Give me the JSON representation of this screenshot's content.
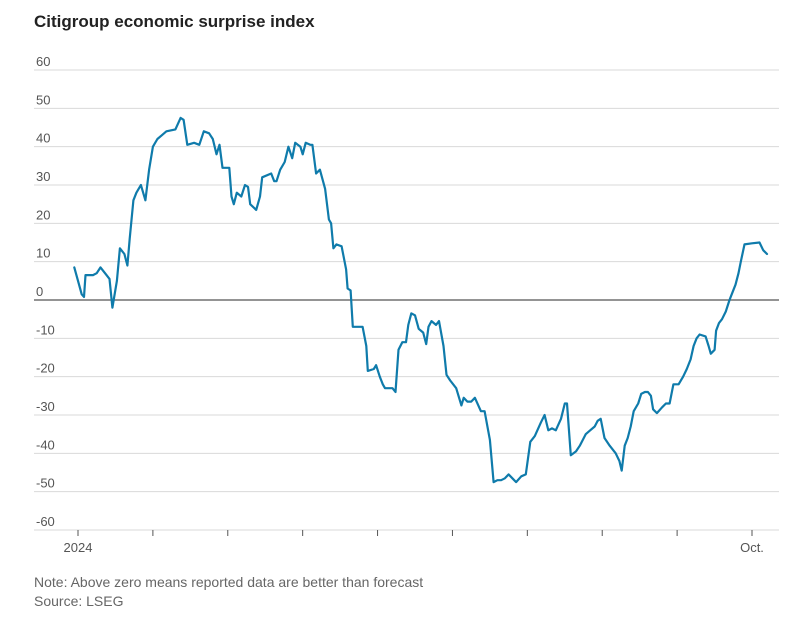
{
  "title": "Citigroup economic surprise index",
  "note": "Note: Above zero means reported data are better than forecast",
  "source": "Source: LSEG",
  "chart_data": {
    "type": "line",
    "title": "Citigroup economic surprise index",
    "xlabel": "",
    "ylabel": "",
    "ylim": [
      -60,
      60
    ],
    "yticks": [
      60,
      50,
      40,
      30,
      20,
      10,
      0,
      -10,
      -20,
      -30,
      -40,
      -50,
      -60
    ],
    "xtick_labels": [
      {
        "x": 0,
        "label": "2024"
      },
      {
        "x": 1,
        "label": ""
      },
      {
        "x": 2,
        "label": ""
      },
      {
        "x": 3,
        "label": ""
      },
      {
        "x": 4,
        "label": ""
      },
      {
        "x": 5,
        "label": ""
      },
      {
        "x": 6,
        "label": ""
      },
      {
        "x": 7,
        "label": ""
      },
      {
        "x": 8,
        "label": ""
      },
      {
        "x": 9,
        "label": "Oct."
      }
    ],
    "xlim": [
      0,
      9.25
    ],
    "x_unit": "months since Jan 2024",
    "grid": true,
    "zero_line": true,
    "series": [
      {
        "color": "#0f7bab",
        "points": [
          [
            -0.05,
            8.5
          ],
          [
            0.0,
            5
          ],
          [
            0.05,
            1.5
          ],
          [
            0.08,
            0.8
          ],
          [
            0.1,
            6.5
          ],
          [
            0.2,
            6.5
          ],
          [
            0.25,
            7
          ],
          [
            0.3,
            8.5
          ],
          [
            0.38,
            6.5
          ],
          [
            0.42,
            5.5
          ],
          [
            0.46,
            -2
          ],
          [
            0.52,
            5
          ],
          [
            0.56,
            13.5
          ],
          [
            0.62,
            12
          ],
          [
            0.66,
            9
          ],
          [
            0.69,
            16
          ],
          [
            0.74,
            26
          ],
          [
            0.78,
            28
          ],
          [
            0.84,
            30
          ],
          [
            0.9,
            26
          ],
          [
            0.95,
            34
          ],
          [
            1.0,
            40
          ],
          [
            1.06,
            42
          ],
          [
            1.12,
            43
          ],
          [
            1.18,
            44
          ],
          [
            1.3,
            44.5
          ],
          [
            1.37,
            47.5
          ],
          [
            1.41,
            47
          ],
          [
            1.46,
            40.5
          ],
          [
            1.55,
            41
          ],
          [
            1.62,
            40.5
          ],
          [
            1.68,
            44
          ],
          [
            1.75,
            43.5
          ],
          [
            1.8,
            42
          ],
          [
            1.85,
            38
          ],
          [
            1.89,
            40.5
          ],
          [
            1.93,
            34.5
          ],
          [
            2.02,
            34.5
          ],
          [
            2.05,
            27
          ],
          [
            2.08,
            25
          ],
          [
            2.12,
            28
          ],
          [
            2.18,
            27
          ],
          [
            2.23,
            30
          ],
          [
            2.27,
            29.5
          ],
          [
            2.3,
            25
          ],
          [
            2.38,
            23.5
          ],
          [
            2.43,
            27
          ],
          [
            2.46,
            32
          ],
          [
            2.58,
            33
          ],
          [
            2.62,
            31
          ],
          [
            2.65,
            31
          ],
          [
            2.7,
            34
          ],
          [
            2.76,
            36
          ],
          [
            2.81,
            40
          ],
          [
            2.86,
            37
          ],
          [
            2.9,
            41
          ],
          [
            2.97,
            40
          ],
          [
            3.0,
            38
          ],
          [
            3.04,
            41
          ],
          [
            3.1,
            40.5
          ],
          [
            3.13,
            40.5
          ],
          [
            3.18,
            33
          ],
          [
            3.23,
            34
          ],
          [
            3.3,
            29
          ],
          [
            3.35,
            21
          ],
          [
            3.38,
            20
          ],
          [
            3.41,
            13.5
          ],
          [
            3.45,
            14.5
          ],
          [
            3.52,
            14
          ],
          [
            3.58,
            8
          ],
          [
            3.6,
            3
          ],
          [
            3.64,
            2.5
          ],
          [
            3.67,
            -7
          ],
          [
            3.8,
            -7
          ],
          [
            3.85,
            -12
          ],
          [
            3.87,
            -18.5
          ],
          [
            3.95,
            -18
          ],
          [
            3.98,
            -17
          ],
          [
            4.03,
            -20
          ],
          [
            4.07,
            -22
          ],
          [
            4.1,
            -23
          ],
          [
            4.2,
            -23
          ],
          [
            4.24,
            -24
          ],
          [
            4.28,
            -13
          ],
          [
            4.33,
            -11
          ],
          [
            4.38,
            -11
          ],
          [
            4.41,
            -6.5
          ],
          [
            4.45,
            -3.5
          ],
          [
            4.5,
            -4
          ],
          [
            4.55,
            -7.5
          ],
          [
            4.61,
            -8.5
          ],
          [
            4.65,
            -11.5
          ],
          [
            4.68,
            -7
          ],
          [
            4.72,
            -5.5
          ],
          [
            4.78,
            -6.5
          ],
          [
            4.82,
            -5.5
          ],
          [
            4.88,
            -12
          ],
          [
            4.92,
            -19.5
          ],
          [
            4.97,
            -21
          ],
          [
            5.05,
            -23
          ],
          [
            5.12,
            -27.5
          ],
          [
            5.15,
            -25.5
          ],
          [
            5.2,
            -26.5
          ],
          [
            5.25,
            -26.5
          ],
          [
            5.3,
            -25.5
          ],
          [
            5.38,
            -29
          ],
          [
            5.43,
            -29
          ],
          [
            5.5,
            -36.5
          ],
          [
            5.55,
            -47.5
          ],
          [
            5.6,
            -47
          ],
          [
            5.65,
            -47
          ],
          [
            5.7,
            -46.5
          ],
          [
            5.75,
            -45.5
          ],
          [
            5.8,
            -46.5
          ],
          [
            5.85,
            -47.5
          ],
          [
            5.92,
            -46
          ],
          [
            5.98,
            -45.5
          ],
          [
            6.04,
            -37
          ],
          [
            6.1,
            -35.5
          ],
          [
            6.18,
            -32
          ],
          [
            6.23,
            -30
          ],
          [
            6.28,
            -34
          ],
          [
            6.33,
            -33.5
          ],
          [
            6.38,
            -34
          ],
          [
            6.45,
            -31
          ],
          [
            6.5,
            -27
          ],
          [
            6.53,
            -27
          ],
          [
            6.58,
            -40.5
          ],
          [
            6.65,
            -39.5
          ],
          [
            6.7,
            -38
          ],
          [
            6.78,
            -35
          ],
          [
            6.84,
            -34
          ],
          [
            6.9,
            -33
          ],
          [
            6.94,
            -31.5
          ],
          [
            6.98,
            -31
          ],
          [
            7.03,
            -36
          ],
          [
            7.1,
            -38
          ],
          [
            7.18,
            -40
          ],
          [
            7.23,
            -42
          ],
          [
            7.26,
            -44.5
          ],
          [
            7.3,
            -38
          ],
          [
            7.34,
            -36
          ],
          [
            7.38,
            -33
          ],
          [
            7.42,
            -29
          ],
          [
            7.48,
            -27
          ],
          [
            7.52,
            -24.5
          ],
          [
            7.57,
            -24
          ],
          [
            7.61,
            -24
          ],
          [
            7.65,
            -25
          ],
          [
            7.68,
            -28.5
          ],
          [
            7.73,
            -29.5
          ],
          [
            7.8,
            -28
          ],
          [
            7.85,
            -27
          ],
          [
            7.9,
            -27
          ],
          [
            7.95,
            -22
          ],
          [
            8.02,
            -22
          ],
          [
            8.08,
            -20
          ],
          [
            8.13,
            -18
          ],
          [
            8.18,
            -15.5
          ],
          [
            8.22,
            -12
          ],
          [
            8.26,
            -10
          ],
          [
            8.3,
            -9
          ],
          [
            8.38,
            -9.5
          ],
          [
            8.42,
            -12
          ],
          [
            8.45,
            -14
          ],
          [
            8.5,
            -13
          ],
          [
            8.52,
            -8
          ],
          [
            8.56,
            -6
          ],
          [
            8.6,
            -5
          ],
          [
            8.65,
            -3
          ],
          [
            8.7,
            0
          ],
          [
            8.74,
            2
          ],
          [
            8.78,
            4
          ],
          [
            8.82,
            7
          ],
          [
            8.85,
            10
          ],
          [
            8.9,
            14.5
          ],
          [
            9.0,
            14.8
          ],
          [
            9.1,
            15
          ],
          [
            9.15,
            13
          ],
          [
            9.2,
            12
          ]
        ]
      }
    ]
  }
}
